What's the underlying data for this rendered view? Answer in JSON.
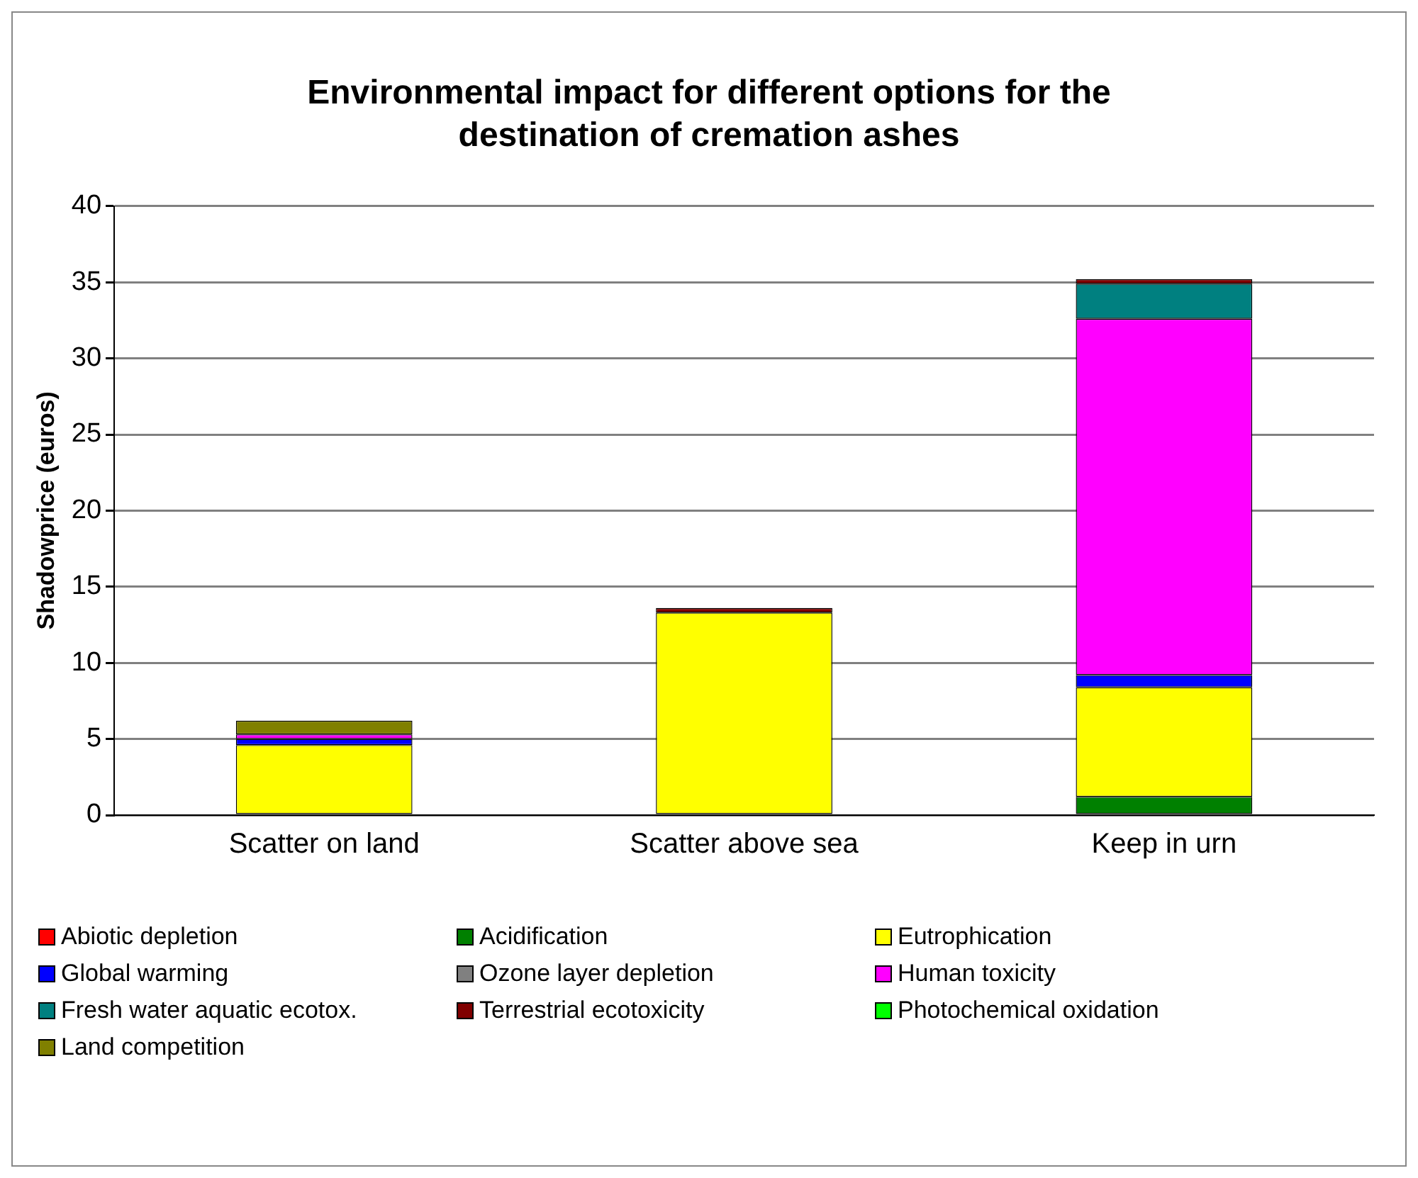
{
  "chart_data": {
    "type": "bar",
    "title": "Environmental impact for different options for the destination of cremation ashes",
    "ylabel": "Shadowprice (euros)",
    "categories": [
      "Scatter on land",
      "Scatter above sea",
      "Keep in urn"
    ],
    "stacked": true,
    "ylim": [
      0,
      40
    ],
    "yticks": [
      0,
      5,
      10,
      15,
      20,
      25,
      30,
      35,
      40
    ],
    "grid": "y",
    "legend": "bottom",
    "series": [
      {
        "name": "Abiotic depletion",
        "color": "#ff0000",
        "values": [
          0,
          0,
          0
        ]
      },
      {
        "name": "Acidification",
        "color": "#008000",
        "values": [
          0,
          0,
          1.2
        ]
      },
      {
        "name": "Eutrophication",
        "color": "#ffff00",
        "values": [
          4.6,
          13.3,
          7.2
        ]
      },
      {
        "name": "Global warming",
        "color": "#0000ff",
        "values": [
          0.4,
          0,
          0.8
        ]
      },
      {
        "name": "Ozone layer depletion",
        "color": "#808080",
        "values": [
          0,
          0,
          0
        ]
      },
      {
        "name": "Human toxicity",
        "color": "#ff00ff",
        "values": [
          0.3,
          0,
          23.4
        ]
      },
      {
        "name": "Fresh water aquatic ecotox.",
        "color": "#008080",
        "values": [
          0,
          0,
          2.3
        ]
      },
      {
        "name": "Terrestrial ecotoxicity",
        "color": "#800000",
        "values": [
          0,
          0.3,
          0.3
        ]
      },
      {
        "name": "Photochemical oxidation",
        "color": "#00ff00",
        "values": [
          0,
          0,
          0
        ]
      },
      {
        "name": "Land competition",
        "color": "#808000",
        "values": [
          0.9,
          0,
          0
        ]
      }
    ]
  }
}
